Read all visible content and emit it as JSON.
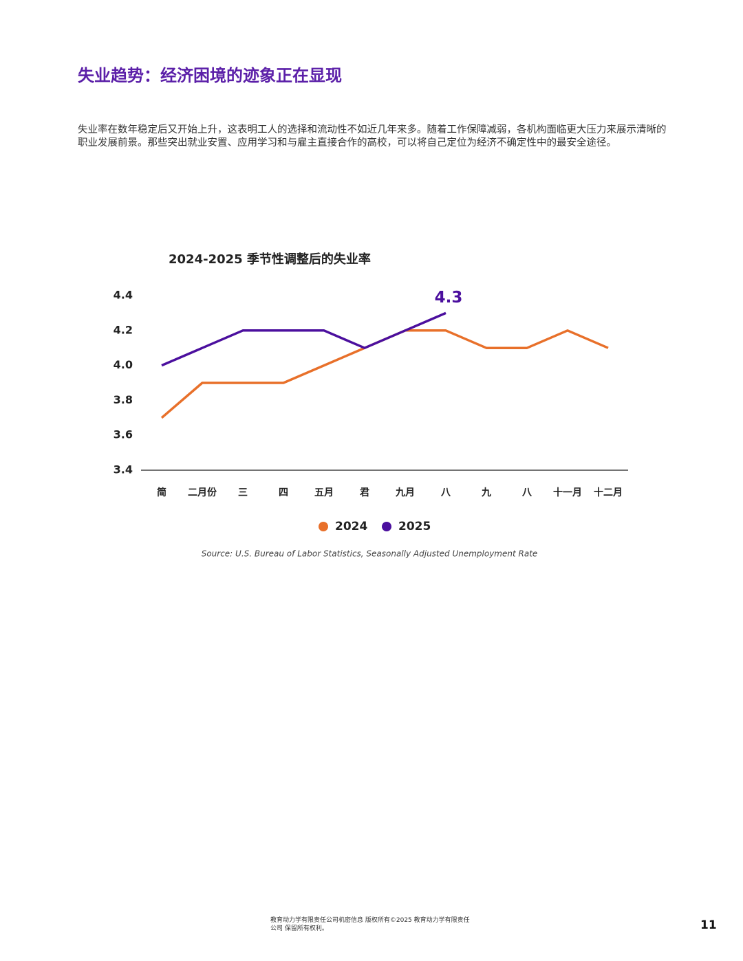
{
  "header": {
    "title": "失业趋势：经济困境的迹象正在显现"
  },
  "paragraph": "失业率在数年稳定后又开始上升，这表明工人的选择和流动性不如近几年来多。随着工作保障减弱，各机构面临更大压力来展示清晰的职业发展前景。那些突出就业安置、应用学习和与雇主直接合作的高校，可以将自己定位为经济不确定性中的最安全途径。",
  "chart_data": {
    "type": "line",
    "title": "2024-2025 季节性调整后的失业率",
    "categories": [
      "简",
      "二月份",
      "三",
      "四",
      "五月",
      "君",
      "九月",
      "八",
      "九",
      "八",
      "十一月",
      "十二月"
    ],
    "series": [
      {
        "name": "2024",
        "color": "#e8702a",
        "values": [
          3.7,
          3.9,
          3.9,
          3.9,
          4.0,
          4.1,
          4.2,
          4.2,
          4.1,
          4.1,
          4.2,
          4.1
        ]
      },
      {
        "name": "2025",
        "color": "#4b0f9e",
        "values": [
          4.0,
          4.1,
          4.2,
          4.2,
          4.2,
          4.1,
          4.2,
          4.3,
          null,
          null,
          null,
          null
        ]
      }
    ],
    "ylim": [
      3.4,
      4.4
    ],
    "yticks": [
      3.4,
      3.6,
      3.8,
      {
        "value": 4,
        "label": "4.0"
      },
      4.2,
      4.4
    ],
    "grid": false,
    "legend": "bottom",
    "source": "Source: U.S. Bureau of Labor Statistics, Seasonally Adjusted Unemployment Rate"
  },
  "footer": {
    "lines": [
      "教育动力学有限责任公司机密信息 版权所有©2025 教育动力学有限责任",
      "公司 保留所有权利。"
    ],
    "page_number": "11"
  }
}
